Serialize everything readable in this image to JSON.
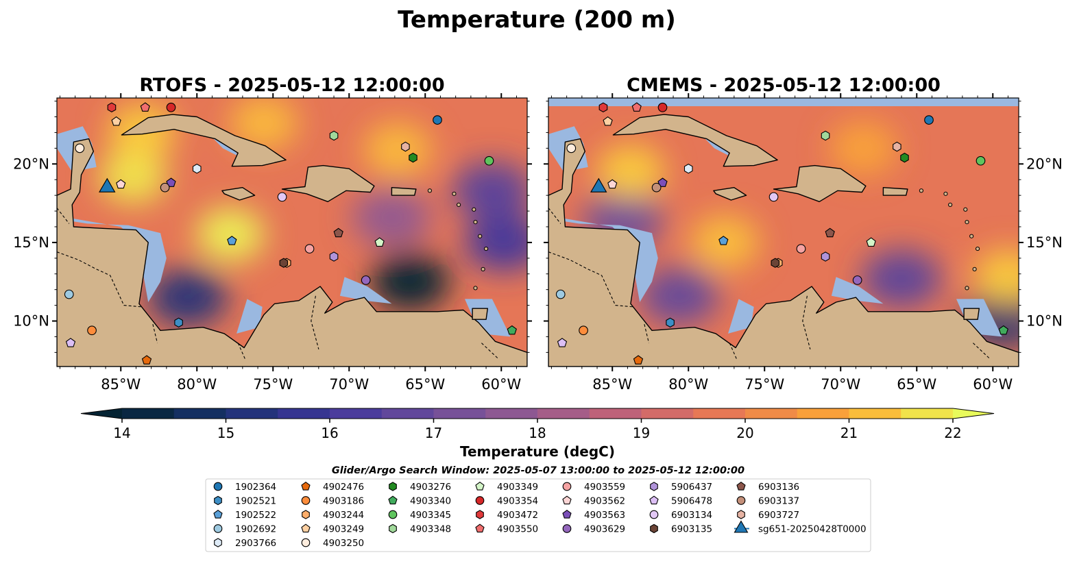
{
  "title": "Temperature (200 m)",
  "colors": {
    "ocean_shelf": "#9ab8e0",
    "land": "#d2b48c",
    "coast": "#000000",
    "glider": "#1f77b4"
  },
  "chart_data": [
    {
      "type": "heatmap",
      "title": "RTOFS - 2025-05-12 12:00:00",
      "x_range": [
        -89.2,
        -58.3
      ],
      "y_range": [
        7.1,
        24.2
      ],
      "x_ticks": [
        "85°W",
        "80°W",
        "75°W",
        "70°W",
        "65°W",
        "60°W"
      ],
      "x_tick_values": [
        -85,
        -80,
        -75,
        -70,
        -65,
        -60
      ],
      "y_ticks": [
        "20°N",
        "15°N",
        "10°N"
      ],
      "y_tick_values": [
        20,
        15,
        10
      ],
      "y_tick_side": "left",
      "warm_zones": [
        {
          "lon": -84.2,
          "lat": 19.2,
          "value": 21.8
        },
        {
          "lon": -77.8,
          "lat": 15.5,
          "value": 21.9
        },
        {
          "lon": -75.6,
          "lat": 22.6,
          "value": 21.2
        },
        {
          "lon": -66.8,
          "lat": 20.9,
          "value": 21.2
        },
        {
          "lon": -83.6,
          "lat": 22.1,
          "value": 21.5
        }
      ],
      "cold_zones": [
        {
          "lon": -66.0,
          "lat": 12.5,
          "value": 14.0
        },
        {
          "lon": -80.6,
          "lat": 11.5,
          "value": 15.2
        },
        {
          "lon": -59.8,
          "lat": 15.0,
          "value": 16.0
        },
        {
          "lon": -67.2,
          "lat": 16.6,
          "value": 17.8
        },
        {
          "lon": -60.6,
          "lat": 18.3,
          "value": 16.5
        }
      ]
    },
    {
      "type": "heatmap",
      "title": "CMEMS - 2025-05-12 12:00:00",
      "x_range": [
        -89.2,
        -58.3
      ],
      "y_range": [
        7.1,
        24.2
      ],
      "x_ticks": [
        "85°W",
        "80°W",
        "75°W",
        "70°W",
        "65°W",
        "60°W"
      ],
      "x_tick_values": [
        -85,
        -80,
        -75,
        -70,
        -65,
        -60
      ],
      "y_ticks": [
        "20°N",
        "15°N",
        "10°N"
      ],
      "y_tick_values": [
        20,
        15,
        10
      ],
      "y_tick_side": "right",
      "warm_zones": [
        {
          "lon": -83.8,
          "lat": 19.5,
          "value": 21.5
        },
        {
          "lon": -77.6,
          "lat": 15.0,
          "value": 21.3
        },
        {
          "lon": -59.0,
          "lat": 12.8,
          "value": 21.5
        },
        {
          "lon": -68.5,
          "lat": 21.0,
          "value": 20.8
        }
      ],
      "cold_zones": [
        {
          "lon": -66.0,
          "lat": 12.7,
          "value": 16.6
        },
        {
          "lon": -80.6,
          "lat": 11.6,
          "value": 16.8
        },
        {
          "lon": -59.3,
          "lat": 10.2,
          "value": 15.0
        },
        {
          "lon": -84.3,
          "lat": 16.4,
          "value": 17.0
        }
      ]
    }
  ],
  "colorbar": {
    "label": "Temperature (degC)",
    "min": 14,
    "max": 22,
    "step": 0.5,
    "ticks": [
      "14",
      "15",
      "16",
      "17",
      "18",
      "19",
      "20",
      "21",
      "22"
    ],
    "tick_values": [
      14,
      15,
      16,
      17,
      18,
      19,
      20,
      21,
      22
    ],
    "extend": "both",
    "colormap": "thermal"
  },
  "legend": {
    "title": "Glider/Argo Search Window: 2025-05-07 13:00:00 to 2025-05-12 12:00:00",
    "columns": 7,
    "entries": [
      {
        "label": "1902364",
        "color": "#1f77b4",
        "marker": "circle",
        "lon": -64.2,
        "lat": 22.8
      },
      {
        "label": "1902521",
        "color": "#3d8fc6",
        "marker": "hexagon",
        "lon": -81.2,
        "lat": 9.9
      },
      {
        "label": "1902522",
        "color": "#5aa0d8",
        "marker": "pentagon",
        "lon": -77.7,
        "lat": 15.1
      },
      {
        "label": "1902692",
        "color": "#9ecae1",
        "marker": "circle",
        "lon": -88.4,
        "lat": 11.7
      },
      {
        "label": "2903766",
        "color": "#deebf7",
        "marker": "hexagon",
        "lon": -80.0,
        "lat": 19.7
      },
      {
        "label": "4902476",
        "color": "#e6690c",
        "marker": "pentagon",
        "lon": -83.3,
        "lat": 7.5
      },
      {
        "label": "4903186",
        "color": "#fd8d3c",
        "marker": "circle",
        "lon": -86.9,
        "lat": 9.4
      },
      {
        "label": "4903244",
        "color": "#fdae6b",
        "marker": "hexagon",
        "lon": -74.1,
        "lat": 13.7
      },
      {
        "label": "4903249",
        "color": "#fdd0a2",
        "marker": "pentagon",
        "lon": -85.3,
        "lat": 22.7
      },
      {
        "label": "4903250",
        "color": "#feedde",
        "marker": "circle",
        "lon": -87.7,
        "lat": 21.0
      },
      {
        "label": "4903276",
        "color": "#238b22",
        "marker": "hexagon",
        "lon": -65.8,
        "lat": 20.4
      },
      {
        "label": "4903340",
        "color": "#41ab5d",
        "marker": "pentagon",
        "lon": -59.3,
        "lat": 9.4
      },
      {
        "label": "4903345",
        "color": "#5fc45e",
        "marker": "circle",
        "lon": -60.8,
        "lat": 20.2
      },
      {
        "label": "4903348",
        "color": "#a1d99b",
        "marker": "hexagon",
        "lon": -71.0,
        "lat": 21.8
      },
      {
        "label": "4903349",
        "color": "#d4f5c8",
        "marker": "pentagon",
        "lon": -68.0,
        "lat": 15.0
      },
      {
        "label": "4903354",
        "color": "#d62728",
        "marker": "circle",
        "lon": -81.7,
        "lat": 23.6
      },
      {
        "label": "4903472",
        "color": "#e0393a",
        "marker": "hexagon",
        "lon": -85.6,
        "lat": 23.6
      },
      {
        "label": "4903550",
        "color": "#f06e6e",
        "marker": "pentagon",
        "lon": -83.4,
        "lat": 23.6
      },
      {
        "label": "4903559",
        "color": "#f5a3a3",
        "marker": "circle",
        "lon": -72.6,
        "lat": 14.6
      },
      {
        "label": "4903562",
        "color": "#fcd5d5",
        "marker": "pentagon",
        "lon": -85.0,
        "lat": 18.7
      },
      {
        "label": "4903563",
        "color": "#7b4fb8",
        "marker": "pentagon",
        "lon": -81.7,
        "lat": 18.8
      },
      {
        "label": "4903629",
        "color": "#9467bd",
        "marker": "circle",
        "lon": -68.9,
        "lat": 12.6
      },
      {
        "label": "5906437",
        "color": "#b093d9",
        "marker": "hexagon",
        "lon": -71.0,
        "lat": 14.1
      },
      {
        "label": "5906478",
        "color": "#dcbff5",
        "marker": "pentagon",
        "lon": -88.3,
        "lat": 8.6
      },
      {
        "label": "6903134",
        "color": "#e2c8f5",
        "marker": "circle",
        "lon": -74.4,
        "lat": 17.9
      },
      {
        "label": "6903135",
        "color": "#6b4436",
        "marker": "hexagon",
        "lon": -74.3,
        "lat": 13.7
      },
      {
        "label": "6903136",
        "color": "#8c564b",
        "marker": "pentagon",
        "lon": -70.7,
        "lat": 15.6
      },
      {
        "label": "6903137",
        "color": "#c4907a",
        "marker": "circle",
        "lon": -82.1,
        "lat": 18.5
      },
      {
        "label": "6903727",
        "color": "#e6b3a3",
        "marker": "hexagon",
        "lon": -66.3,
        "lat": 21.1
      },
      {
        "label": "sg651-20250428T0000",
        "color": "#1f77b4",
        "marker": "triangle",
        "lon": -85.9,
        "lat": 18.5
      }
    ]
  }
}
